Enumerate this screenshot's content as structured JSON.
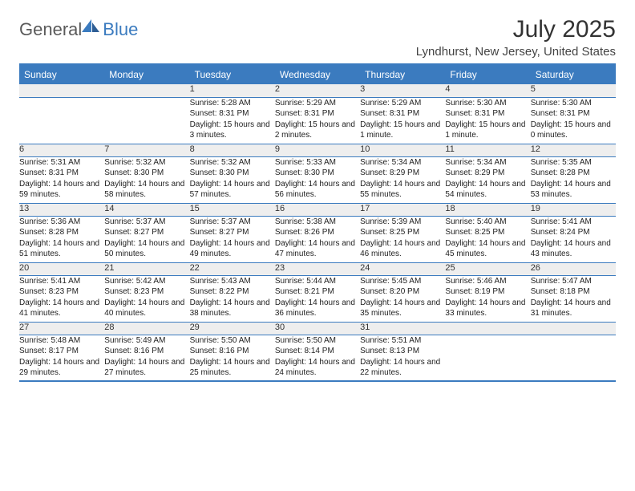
{
  "brand": {
    "part1": "General",
    "part2": "Blue"
  },
  "title": "July 2025",
  "location": "Lyndhurst, New Jersey, United States",
  "columns": [
    "Sunday",
    "Monday",
    "Tuesday",
    "Wednesday",
    "Thursday",
    "Friday",
    "Saturday"
  ],
  "colors": {
    "accent": "#3b7bbf",
    "header_text": "#ffffff",
    "daynum_bg": "#eeeeee",
    "body_text": "#222222",
    "title_text": "#333333",
    "background": "#ffffff"
  },
  "typography": {
    "title_fontsize": 30,
    "location_fontsize": 15,
    "header_fontsize": 12,
    "daynum_fontsize": 11,
    "cell_fontsize": 10
  },
  "layout": {
    "cols": 7,
    "rows": 5,
    "first_day_col_index": 2
  },
  "days": [
    {
      "n": "1",
      "sunrise": "5:28 AM",
      "sunset": "8:31 PM",
      "daylight": "15 hours and 3 minutes."
    },
    {
      "n": "2",
      "sunrise": "5:29 AM",
      "sunset": "8:31 PM",
      "daylight": "15 hours and 2 minutes."
    },
    {
      "n": "3",
      "sunrise": "5:29 AM",
      "sunset": "8:31 PM",
      "daylight": "15 hours and 1 minute."
    },
    {
      "n": "4",
      "sunrise": "5:30 AM",
      "sunset": "8:31 PM",
      "daylight": "15 hours and 1 minute."
    },
    {
      "n": "5",
      "sunrise": "5:30 AM",
      "sunset": "8:31 PM",
      "daylight": "15 hours and 0 minutes."
    },
    {
      "n": "6",
      "sunrise": "5:31 AM",
      "sunset": "8:31 PM",
      "daylight": "14 hours and 59 minutes."
    },
    {
      "n": "7",
      "sunrise": "5:32 AM",
      "sunset": "8:30 PM",
      "daylight": "14 hours and 58 minutes."
    },
    {
      "n": "8",
      "sunrise": "5:32 AM",
      "sunset": "8:30 PM",
      "daylight": "14 hours and 57 minutes."
    },
    {
      "n": "9",
      "sunrise": "5:33 AM",
      "sunset": "8:30 PM",
      "daylight": "14 hours and 56 minutes."
    },
    {
      "n": "10",
      "sunrise": "5:34 AM",
      "sunset": "8:29 PM",
      "daylight": "14 hours and 55 minutes."
    },
    {
      "n": "11",
      "sunrise": "5:34 AM",
      "sunset": "8:29 PM",
      "daylight": "14 hours and 54 minutes."
    },
    {
      "n": "12",
      "sunrise": "5:35 AM",
      "sunset": "8:28 PM",
      "daylight": "14 hours and 53 minutes."
    },
    {
      "n": "13",
      "sunrise": "5:36 AM",
      "sunset": "8:28 PM",
      "daylight": "14 hours and 51 minutes."
    },
    {
      "n": "14",
      "sunrise": "5:37 AM",
      "sunset": "8:27 PM",
      "daylight": "14 hours and 50 minutes."
    },
    {
      "n": "15",
      "sunrise": "5:37 AM",
      "sunset": "8:27 PM",
      "daylight": "14 hours and 49 minutes."
    },
    {
      "n": "16",
      "sunrise": "5:38 AM",
      "sunset": "8:26 PM",
      "daylight": "14 hours and 47 minutes."
    },
    {
      "n": "17",
      "sunrise": "5:39 AM",
      "sunset": "8:25 PM",
      "daylight": "14 hours and 46 minutes."
    },
    {
      "n": "18",
      "sunrise": "5:40 AM",
      "sunset": "8:25 PM",
      "daylight": "14 hours and 45 minutes."
    },
    {
      "n": "19",
      "sunrise": "5:41 AM",
      "sunset": "8:24 PM",
      "daylight": "14 hours and 43 minutes."
    },
    {
      "n": "20",
      "sunrise": "5:41 AM",
      "sunset": "8:23 PM",
      "daylight": "14 hours and 41 minutes."
    },
    {
      "n": "21",
      "sunrise": "5:42 AM",
      "sunset": "8:23 PM",
      "daylight": "14 hours and 40 minutes."
    },
    {
      "n": "22",
      "sunrise": "5:43 AM",
      "sunset": "8:22 PM",
      "daylight": "14 hours and 38 minutes."
    },
    {
      "n": "23",
      "sunrise": "5:44 AM",
      "sunset": "8:21 PM",
      "daylight": "14 hours and 36 minutes."
    },
    {
      "n": "24",
      "sunrise": "5:45 AM",
      "sunset": "8:20 PM",
      "daylight": "14 hours and 35 minutes."
    },
    {
      "n": "25",
      "sunrise": "5:46 AM",
      "sunset": "8:19 PM",
      "daylight": "14 hours and 33 minutes."
    },
    {
      "n": "26",
      "sunrise": "5:47 AM",
      "sunset": "8:18 PM",
      "daylight": "14 hours and 31 minutes."
    },
    {
      "n": "27",
      "sunrise": "5:48 AM",
      "sunset": "8:17 PM",
      "daylight": "14 hours and 29 minutes."
    },
    {
      "n": "28",
      "sunrise": "5:49 AM",
      "sunset": "8:16 PM",
      "daylight": "14 hours and 27 minutes."
    },
    {
      "n": "29",
      "sunrise": "5:50 AM",
      "sunset": "8:16 PM",
      "daylight": "14 hours and 25 minutes."
    },
    {
      "n": "30",
      "sunrise": "5:50 AM",
      "sunset": "8:14 PM",
      "daylight": "14 hours and 24 minutes."
    },
    {
      "n": "31",
      "sunrise": "5:51 AM",
      "sunset": "8:13 PM",
      "daylight": "14 hours and 22 minutes."
    }
  ],
  "labels": {
    "sunrise": "Sunrise: ",
    "sunset": "Sunset: ",
    "daylight": "Daylight: "
  }
}
